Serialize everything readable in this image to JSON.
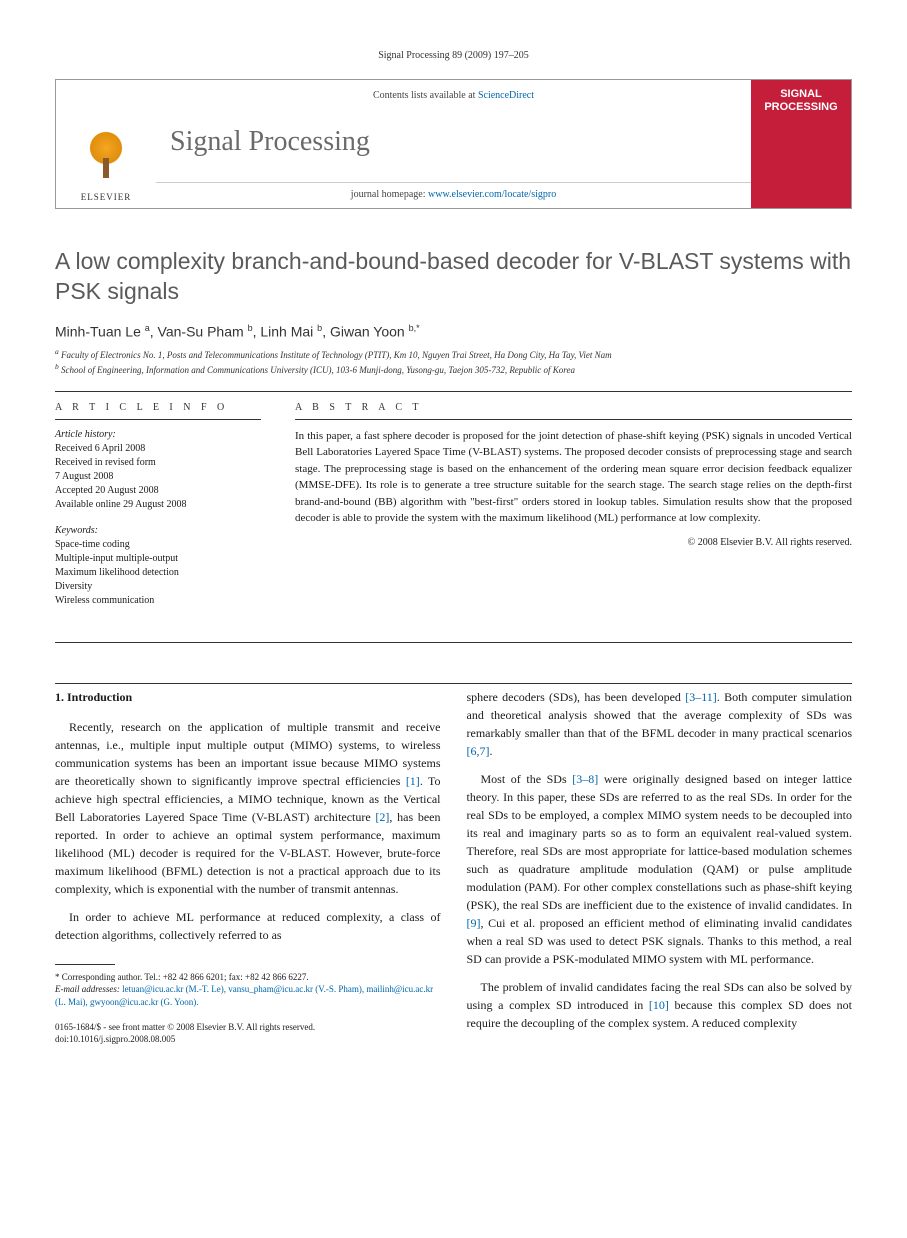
{
  "running_header": "Signal Processing 89 (2009) 197–205",
  "masthead": {
    "contents_text": "Contents lists available at ",
    "contents_link": "ScienceDirect",
    "journal_title": "Signal Processing",
    "homepage_text": "journal homepage: ",
    "homepage_link": "www.elsevier.com/locate/sigpro",
    "publisher": "ELSEVIER",
    "cover_title": "SIGNAL PROCESSING"
  },
  "article": {
    "title": "A low complexity branch-and-bound-based decoder for V-BLAST systems with PSK signals",
    "authors_html": "Minh-Tuan Le <sup>a</sup>, Van-Su Pham <sup>b</sup>, Linh Mai <sup>b</sup>, Giwan Yoon <sup>b,*</sup>",
    "affiliations": {
      "a": "Faculty of Electronics No. 1, Posts and Telecommunications Institute of Technology (PTIT), Km 10, Nguyen Trai Street, Ha Dong City, Ha Tay, Viet Nam",
      "b": "School of Engineering, Information and Communications University (ICU), 103-6 Munji-dong, Yusong-gu, Taejon 305-732, Republic of Korea"
    }
  },
  "info": {
    "section_label": "A R T I C L E  I N F O",
    "history_head": "Article history:",
    "history": [
      "Received 6 April 2008",
      "Received in revised form",
      "7 August 2008",
      "Accepted 20 August 2008",
      "Available online 29 August 2008"
    ],
    "keywords_head": "Keywords:",
    "keywords": [
      "Space-time coding",
      "Multiple-input multiple-output",
      "Maximum likelihood detection",
      "Diversity",
      "Wireless communication"
    ]
  },
  "abstract": {
    "section_label": "A B S T R A C T",
    "text": "In this paper, a fast sphere decoder is proposed for the joint detection of phase-shift keying (PSK) signals in uncoded Vertical Bell Laboratories Layered Space Time (V-BLAST) systems. The proposed decoder consists of preprocessing stage and search stage. The preprocessing stage is based on the enhancement of the ordering mean square error decision feedback equalizer (MMSE-DFE). Its role is to generate a tree structure suitable for the search stage. The search stage relies on the depth-first brand-and-bound (BB) algorithm with \"best-first\" orders stored in lookup tables. Simulation results show that the proposed decoder is able to provide the system with the maximum likelihood (ML) performance at low complexity.",
    "copyright": "© 2008 Elsevier B.V. All rights reserved."
  },
  "body": {
    "section_number": "1.",
    "section_title": "Introduction",
    "left_paras": [
      "Recently, research on the application of multiple transmit and receive antennas, i.e., multiple input multiple output (MIMO) systems, to wireless communication systems has been an important issue because MIMO systems are theoretically shown to significantly improve spectral efficiencies [1]. To achieve high spectral efficiencies, a MIMO technique, known as the Vertical Bell Laboratories Layered Space Time (V-BLAST) architecture [2], has been reported. In order to achieve an optimal system performance, maximum likelihood (ML) decoder is required for the V-BLAST. However, brute-force maximum likelihood (BFML) detection is not a practical approach due to its complexity, which is exponential with the number of transmit antennas.",
      "In order to achieve ML performance at reduced complexity, a class of detection algorithms, collectively referred to as"
    ],
    "right_paras": [
      "sphere decoders (SDs), has been developed [3–11]. Both computer simulation and theoretical analysis showed that the average complexity of SDs was remarkably smaller than that of the BFML decoder in many practical scenarios [6,7].",
      "Most of the SDs [3–8] were originally designed based on integer lattice theory. In this paper, these SDs are referred to as the real SDs. In order for the real SDs to be employed, a complex MIMO system needs to be decoupled into its real and imaginary parts so as to form an equivalent real-valued system. Therefore, real SDs are most appropriate for lattice-based modulation schemes such as quadrature amplitude modulation (QAM) or pulse amplitude modulation (PAM). For other complex constellations such as phase-shift keying (PSK), the real SDs are inefficient due to the existence of invalid candidates. In [9], Cui et al. proposed an efficient method of eliminating invalid candidates when a real SD was used to detect PSK signals. Thanks to this method, a real SD can provide a PSK-modulated MIMO system with ML performance.",
      "The problem of invalid candidates facing the real SDs can also be solved by using a complex SD introduced in [10] because this complex SD does not require the decoupling of the complex system. A reduced complexity"
    ]
  },
  "footnotes": {
    "corresponding": "* Corresponding author. Tel.: +82 42 866 6201; fax: +82 42 866 6227.",
    "email_label": "E-mail addresses:",
    "emails": "letuan@icu.ac.kr (M.-T. Le), vansu_pham@icu.ac.kr (V.-S. Pham), mailinh@icu.ac.kr (L. Mai), gwyoon@icu.ac.kr (G. Yoon)."
  },
  "footer": {
    "line1": "0165-1684/$ - see front matter © 2008 Elsevier B.V. All rights reserved.",
    "line2": "doi:10.1016/j.sigpro.2008.08.005"
  },
  "colors": {
    "link": "#0066aa",
    "title_gray": "#5a5a5a",
    "cover_red": "#c41e3a"
  }
}
